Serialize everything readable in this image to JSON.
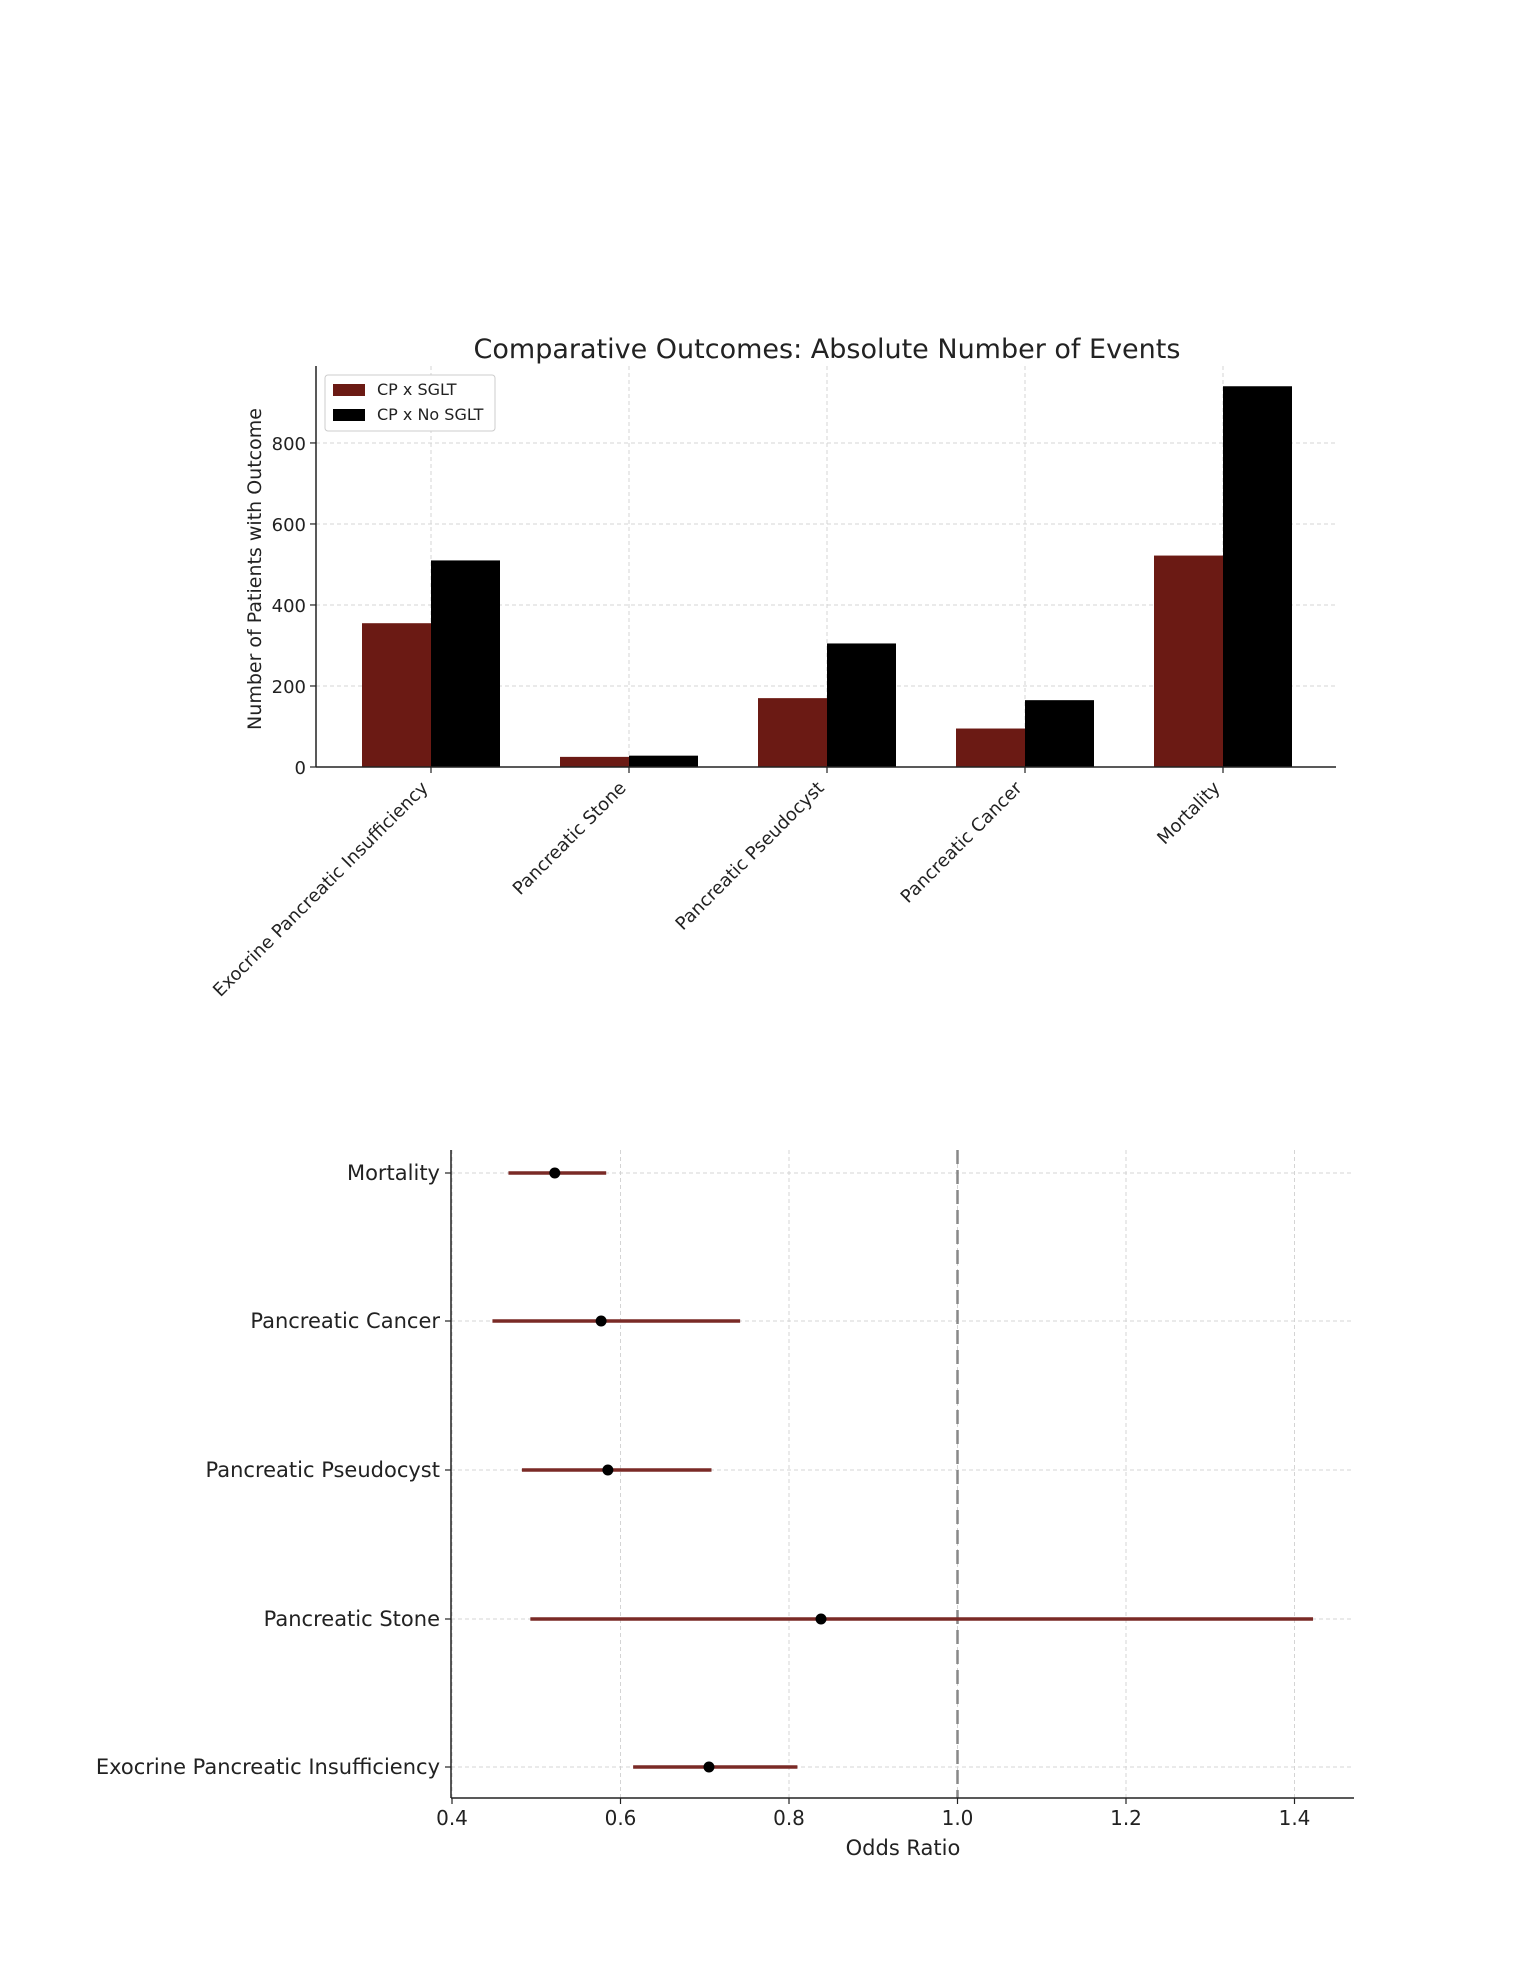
{
  "chart_data": [
    {
      "type": "bar",
      "title": "Comparative Outcomes: Absolute Number of Events",
      "xlabel": "",
      "ylabel": "Number of Patients with Outcome",
      "categories": [
        "Exocrine Pancreatic Insufficiency",
        "Pancreatic Stone",
        "Pancreatic Pseudocyst",
        "Pancreatic Cancer",
        "Mortality"
      ],
      "series": [
        {
          "name": "CP x SGLT",
          "values": [
            355,
            25,
            170,
            95,
            522
          ],
          "color": "#6b1a14"
        },
        {
          "name": "CP x No SGLT",
          "values": [
            510,
            28,
            305,
            165,
            940
          ],
          "color": "#000000"
        }
      ],
      "ylim": [
        0,
        990
      ],
      "yticks": [
        0,
        200,
        400,
        600,
        800
      ],
      "grid": true,
      "legend": "top-left"
    },
    {
      "type": "scatter",
      "subtype": "forest",
      "title": "",
      "xlabel": "Odds Ratio",
      "ylabel": "",
      "categories": [
        "Exocrine Pancreatic Insufficiency",
        "Pancreatic Stone",
        "Pancreatic Pseudocyst",
        "Pancreatic Cancer",
        "Mortality"
      ],
      "or": [
        0.705,
        0.838,
        0.585,
        0.577,
        0.522
      ],
      "ci_low": [
        0.615,
        0.493,
        0.483,
        0.448,
        0.467
      ],
      "ci_high": [
        0.81,
        1.422,
        0.708,
        0.742,
        0.583
      ],
      "reference": 1.0,
      "xlim": [
        0.4,
        1.47
      ],
      "xticks": [
        0.4,
        0.6,
        0.8,
        1.0,
        1.2,
        1.4
      ],
      "line_color": "#7a2a26",
      "point_color": "#000000",
      "grid": true
    }
  ]
}
